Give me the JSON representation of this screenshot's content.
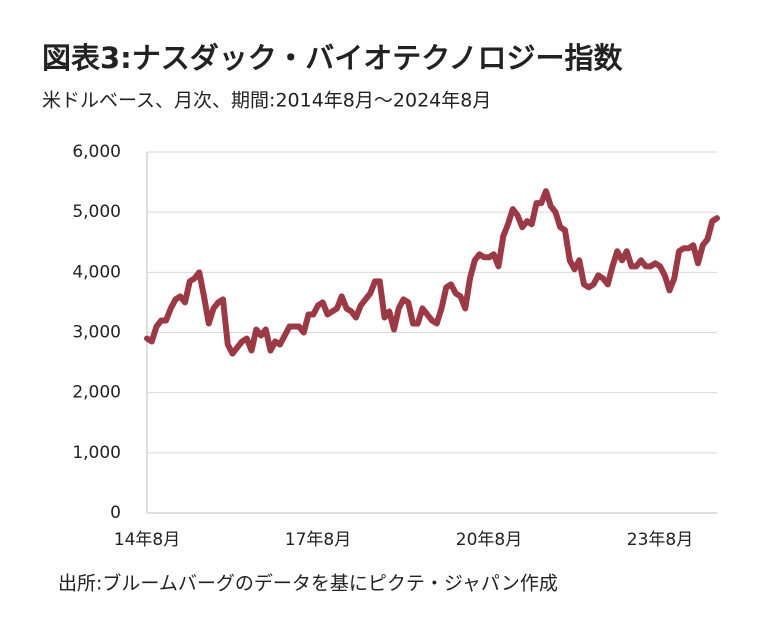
{
  "chart_data": {
    "type": "line",
    "title": "図表3:ナスダック・バイオテクノロジー指数",
    "subtitle": "米ドルベース、月次、期間:2014年8月～2024年8月",
    "source": "出所:ブルームバーグのデータを基にピクテ・ジャパン作成",
    "color": "#9b3a44",
    "categories": [
      "14年8月",
      null,
      null,
      null,
      null,
      null,
      null,
      null,
      null,
      null,
      null,
      null,
      null,
      null,
      null,
      null,
      null,
      null,
      null,
      null,
      null,
      null,
      null,
      null,
      null,
      null,
      null,
      null,
      null,
      null,
      null,
      null,
      null,
      null,
      null,
      null,
      "17年8月",
      null,
      null,
      null,
      null,
      null,
      null,
      null,
      null,
      null,
      null,
      null,
      null,
      null,
      null,
      null,
      null,
      null,
      null,
      null,
      null,
      null,
      null,
      null,
      null,
      null,
      null,
      null,
      null,
      null,
      null,
      null,
      null,
      null,
      null,
      null,
      "20年8月",
      null,
      null,
      null,
      null,
      null,
      null,
      null,
      null,
      null,
      null,
      null,
      null,
      null,
      null,
      null,
      null,
      null,
      null,
      null,
      null,
      null,
      null,
      null,
      null,
      null,
      null,
      null,
      null,
      null,
      null,
      null,
      null,
      null,
      null,
      null,
      "23年8月",
      null,
      null,
      null,
      null,
      null,
      null,
      null,
      null,
      null,
      null,
      null,
      null
    ],
    "values": [
      2900,
      2850,
      3100,
      3200,
      3200,
      3400,
      3550,
      3600,
      3500,
      3850,
      3900,
      4000,
      3600,
      3150,
      3400,
      3500,
      3550,
      2800,
      2650,
      2750,
      2850,
      2900,
      2700,
      3050,
      2950,
      3050,
      2700,
      2850,
      2800,
      2950,
      3100,
      3100,
      3100,
      3000,
      3300,
      3300,
      3450,
      3500,
      3300,
      3350,
      3400,
      3600,
      3400,
      3350,
      3250,
      3450,
      3550,
      3650,
      3850,
      3850,
      3250,
      3350,
      3050,
      3400,
      3550,
      3500,
      3150,
      3150,
      3400,
      3300,
      3200,
      3150,
      3400,
      3750,
      3800,
      3650,
      3600,
      3400,
      3900,
      4200,
      4300,
      4250,
      4250,
      4300,
      4100,
      4600,
      4800,
      5050,
      4950,
      4750,
      4850,
      4800,
      5150,
      5150,
      5350,
      5100,
      5000,
      4750,
      4700,
      4200,
      4050,
      4200,
      3800,
      3750,
      3800,
      3950,
      3900,
      3800,
      4100,
      4350,
      4200,
      4350,
      4100,
      4100,
      4200,
      4100,
      4100,
      4150,
      4100,
      3950,
      3700,
      3900,
      4350,
      4400,
      4400,
      4450,
      4150,
      4450,
      4550,
      4850,
      4900
    ],
    "ylim": [
      0,
      6000
    ],
    "yticks": [
      0,
      {
        "value": 1000,
        "label": "1,000"
      },
      {
        "value": 2000,
        "label": "2,000"
      },
      {
        "value": 3000,
        "label": "3,000"
      },
      {
        "value": 4000,
        "label": "4,000"
      },
      {
        "value": 5000,
        "label": "5,000"
      },
      {
        "value": 6000,
        "label": "6,000"
      }
    ],
    "grid": true
  }
}
